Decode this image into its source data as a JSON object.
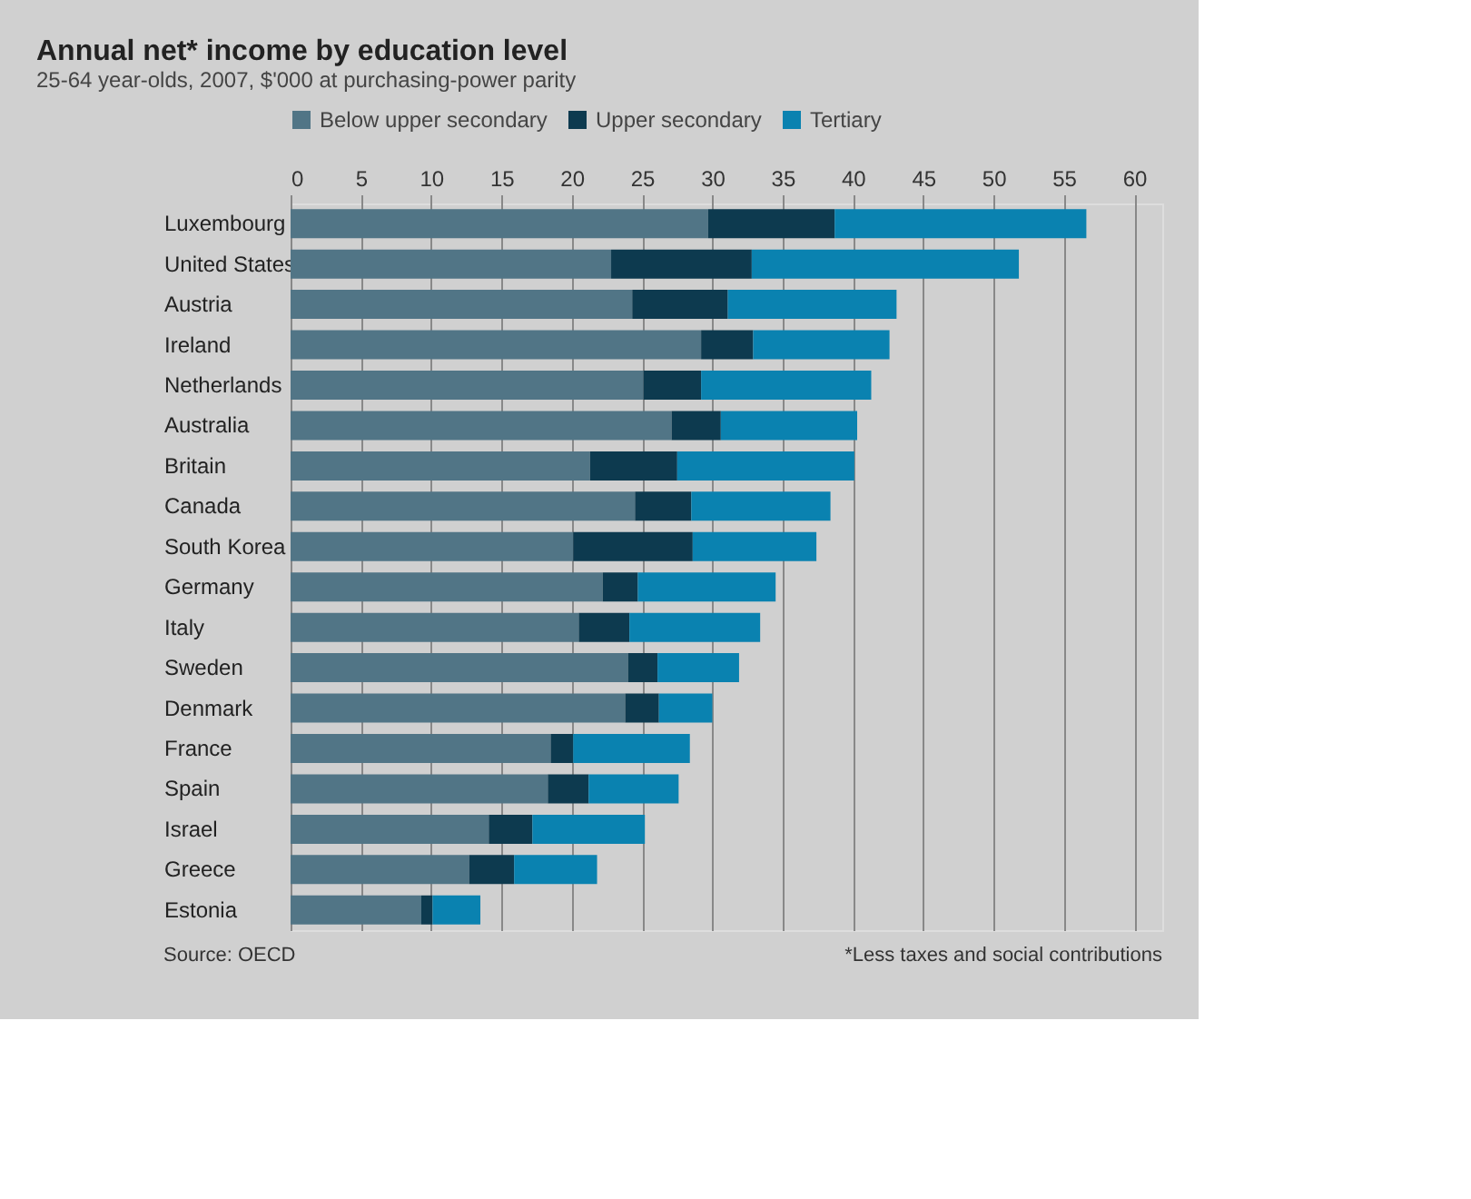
{
  "chart_data": {
    "type": "bar",
    "orientation": "horizontal",
    "stacked": true,
    "title": "Annual net* income by education level",
    "subtitle": "25-64 year-olds, 2007, $'000 at purchasing-power parity",
    "categories": [
      "Luxembourg",
      "United States",
      "Austria",
      "Ireland",
      "Netherlands",
      "Australia",
      "Britain",
      "Canada",
      "South Korea",
      "Germany",
      "Italy",
      "Sweden",
      "Denmark",
      "France",
      "Spain",
      "Israel",
      "Greece",
      "Estonia"
    ],
    "series": [
      {
        "name": "Below upper secondary",
        "color": "#517586",
        "values": [
          29.7,
          22.8,
          24.3,
          29.2,
          25.1,
          27.1,
          21.3,
          24.5,
          20.1,
          22.2,
          20.5,
          24.0,
          23.8,
          18.5,
          18.3,
          14.1,
          12.7,
          9.3
        ]
      },
      {
        "name": "Upper secondary",
        "color": "#0d3a4f",
        "values": [
          9.0,
          10.0,
          6.8,
          3.7,
          4.1,
          3.5,
          6.2,
          4.0,
          8.5,
          2.5,
          3.6,
          2.1,
          2.4,
          1.6,
          2.9,
          3.1,
          3.2,
          0.8
        ]
      },
      {
        "name": "Tertiary",
        "color": "#0a82b0",
        "values": [
          17.9,
          19.0,
          12.0,
          9.7,
          12.1,
          9.7,
          12.6,
          9.9,
          8.8,
          9.8,
          9.3,
          5.8,
          3.8,
          8.3,
          6.4,
          8.0,
          5.9,
          3.4
        ]
      }
    ],
    "xlim": [
      0,
      62
    ],
    "xticks": [
      0,
      5,
      10,
      15,
      20,
      25,
      30,
      35,
      40,
      45,
      50,
      55,
      60
    ],
    "grid": "x",
    "legend": "top left",
    "annotations": [
      "Source: OECD",
      "*Less taxes and social contributions"
    ]
  }
}
